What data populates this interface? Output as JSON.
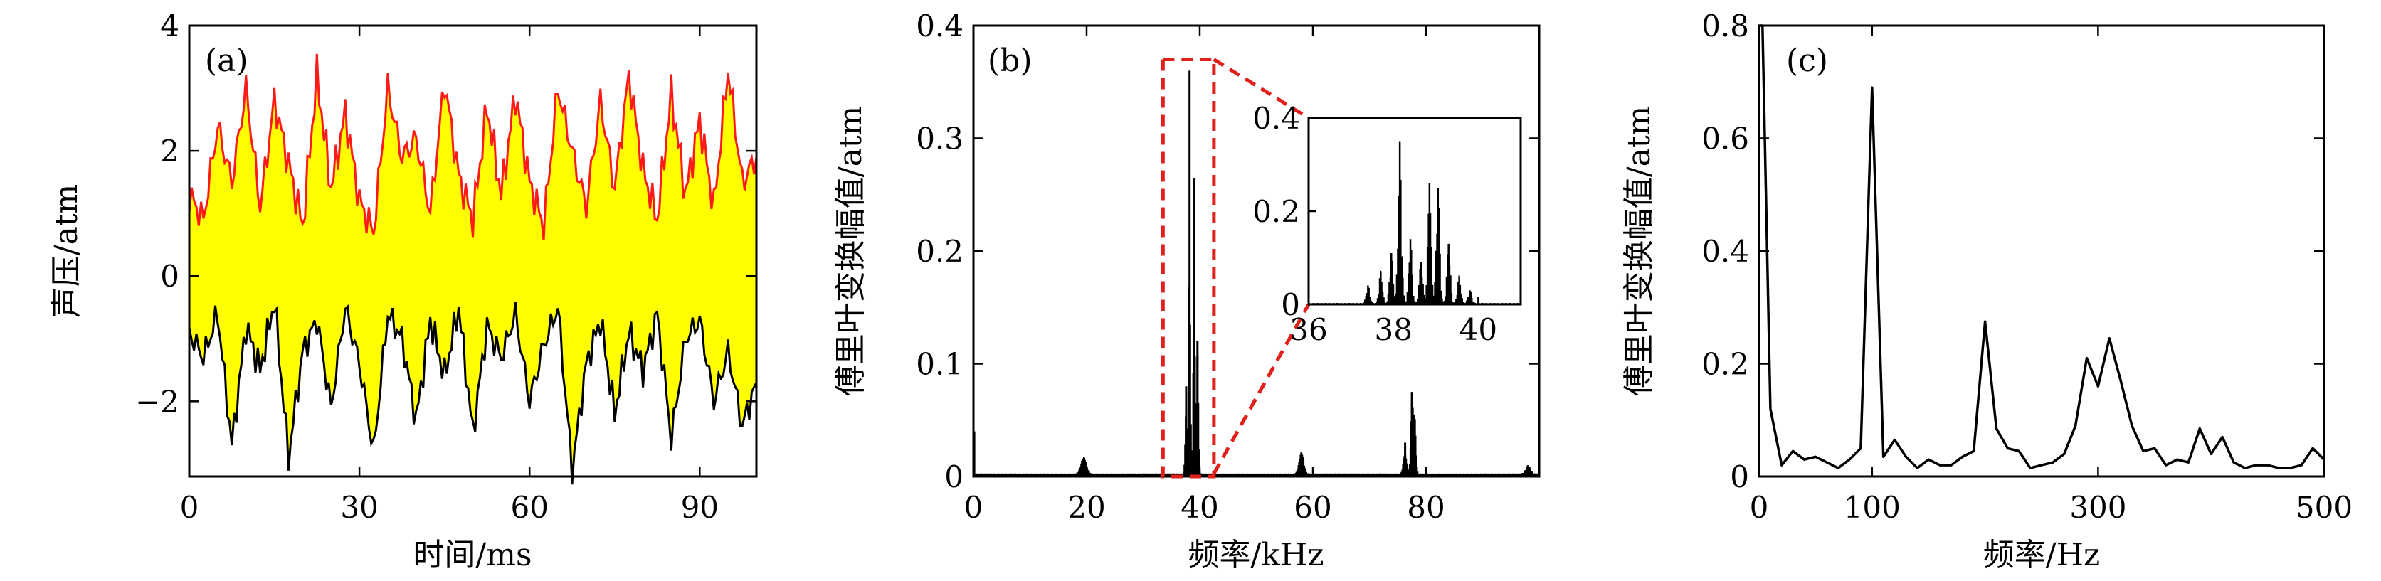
{
  "chart_data": [
    {
      "id": "a",
      "type": "area",
      "panel_label": "(a)",
      "xlabel": "时间/ms",
      "ylabel": "声压/atm",
      "xlim": [
        0,
        100
      ],
      "ylim": [
        -3.2,
        4
      ],
      "xticks": [
        0,
        30,
        60,
        90
      ],
      "yticks": [
        -2,
        0,
        2,
        4
      ],
      "ytick_labels": [
        "−2",
        "0",
        "2",
        "4"
      ],
      "fill_color": "#ffff00",
      "upper_color": "#ff1a1a",
      "lower_color": "#000000",
      "t": [
        0,
        2.5,
        5,
        7.5,
        10,
        12.5,
        15,
        17.5,
        20,
        22.5,
        25,
        27.5,
        30,
        32.5,
        35,
        37.5,
        40,
        42.5,
        45,
        47.5,
        50,
        52.5,
        55,
        57.5,
        60,
        62.5,
        65,
        67.5,
        70,
        72.5,
        75,
        77.5,
        80,
        82.5,
        85,
        87.5,
        90,
        92.5,
        95,
        97.5,
        100
      ],
      "upper_envelope": [
        1.3,
        0.9,
        2.4,
        1.5,
        3.0,
        1.1,
        2.8,
        1.8,
        0.8,
        3.2,
        1.4,
        2.6,
        1.2,
        0.7,
        3.0,
        1.9,
        2.2,
        1.0,
        3.1,
        1.6,
        0.9,
        2.7,
        1.3,
        2.9,
        1.5,
        0.8,
        3.0,
        2.0,
        1.1,
        2.8,
        1.4,
        3.2,
        1.7,
        0.9,
        2.9,
        1.3,
        2.5,
        1.1,
        3.3,
        1.5,
        1.9
      ],
      "lower_envelope": [
        -0.9,
        -1.3,
        -0.6,
        -2.7,
        -0.8,
        -1.5,
        -0.4,
        -2.9,
        -1.2,
        -0.7,
        -2.1,
        -0.5,
        -1.4,
        -2.8,
        -0.6,
        -1.0,
        -2.3,
        -0.7,
        -1.6,
        -0.5,
        -2.5,
        -0.8,
        -1.3,
        -0.6,
        -2.0,
        -1.1,
        -0.5,
        -3.1,
        -1.4,
        -0.7,
        -2.2,
        -0.9,
        -1.5,
        -0.6,
        -2.6,
        -1.0,
        -0.7,
        -2.0,
        -1.2,
        -2.4,
        -1.7
      ]
    },
    {
      "id": "b",
      "type": "line",
      "panel_label": "(b)",
      "xlabel": "频率/kHz",
      "ylabel": "傅里叶变换幅值/atm",
      "xlim": [
        0,
        100
      ],
      "ylim": [
        0,
        0.4
      ],
      "xticks": [
        0,
        20,
        40,
        60,
        80
      ],
      "yticks": [
        0,
        0.1,
        0.2,
        0.3,
        0.4
      ],
      "ytick_labels": [
        "0",
        "0.1",
        "0.2",
        "0.3",
        "0.4"
      ],
      "peaks": [
        {
          "x": 19.5,
          "y": 0.015,
          "width": 1.2
        },
        {
          "x": 38.2,
          "y": 0.36,
          "width": 0.35
        },
        {
          "x": 39.0,
          "y": 0.265,
          "width": 0.35
        },
        {
          "x": 37.6,
          "y": 0.08,
          "width": 0.4
        },
        {
          "x": 39.6,
          "y": 0.12,
          "width": 0.4
        },
        {
          "x": 58.0,
          "y": 0.02,
          "width": 1.0
        },
        {
          "x": 76.3,
          "y": 0.03,
          "width": 0.7
        },
        {
          "x": 77.5,
          "y": 0.075,
          "width": 0.5
        },
        {
          "x": 78.0,
          "y": 0.05,
          "width": 0.5
        },
        {
          "x": 98.0,
          "y": 0.01,
          "width": 1.0
        }
      ],
      "zoom_box": {
        "x_range": [
          33.5,
          42.5
        ],
        "y_top": 0.37,
        "color": "#e0201a"
      },
      "inset": {
        "xlim": [
          36,
          41
        ],
        "ylim": [
          0,
          0.4
        ],
        "xticks": [
          36,
          38,
          40
        ],
        "yticks": [
          0,
          0.2,
          0.4
        ],
        "ytick_labels": [
          "0",
          "0.2",
          "0.4"
        ],
        "peaks": [
          {
            "x": 37.4,
            "y": 0.04
          },
          {
            "x": 37.7,
            "y": 0.07
          },
          {
            "x": 37.95,
            "y": 0.11
          },
          {
            "x": 38.15,
            "y": 0.35
          },
          {
            "x": 38.4,
            "y": 0.14
          },
          {
            "x": 38.65,
            "y": 0.09
          },
          {
            "x": 38.85,
            "y": 0.26
          },
          {
            "x": 39.05,
            "y": 0.25
          },
          {
            "x": 39.3,
            "y": 0.13
          },
          {
            "x": 39.55,
            "y": 0.06
          },
          {
            "x": 39.8,
            "y": 0.03
          }
        ]
      }
    },
    {
      "id": "c",
      "type": "line",
      "panel_label": "(c)",
      "xlabel": "频率/Hz",
      "ylabel": "傅里叶变换幅值/atm",
      "xlim": [
        0,
        500
      ],
      "ylim": [
        0,
        0.8
      ],
      "xticks": [
        0,
        100,
        300,
        500
      ],
      "yticks": [
        0,
        0.2,
        0.4,
        0.6,
        0.8
      ],
      "ytick_labels": [
        "0",
        "0.2",
        "0.4",
        "0.6",
        "0.8"
      ],
      "x": [
        0,
        3,
        10,
        20,
        30,
        40,
        50,
        60,
        70,
        80,
        90,
        100,
        110,
        120,
        130,
        140,
        150,
        160,
        170,
        180,
        190,
        200,
        210,
        220,
        230,
        240,
        250,
        260,
        270,
        280,
        290,
        300,
        310,
        320,
        330,
        340,
        350,
        360,
        370,
        380,
        390,
        400,
        410,
        420,
        430,
        440,
        450,
        460,
        470,
        480,
        490,
        500
      ],
      "y": [
        0.8,
        0.8,
        0.12,
        0.02,
        0.045,
        0.03,
        0.035,
        0.025,
        0.015,
        0.03,
        0.05,
        0.69,
        0.035,
        0.065,
        0.035,
        0.015,
        0.03,
        0.02,
        0.02,
        0.035,
        0.045,
        0.275,
        0.085,
        0.05,
        0.045,
        0.015,
        0.02,
        0.025,
        0.04,
        0.09,
        0.21,
        0.16,
        0.245,
        0.17,
        0.09,
        0.045,
        0.05,
        0.02,
        0.03,
        0.025,
        0.085,
        0.04,
        0.07,
        0.025,
        0.015,
        0.02,
        0.02,
        0.015,
        0.015,
        0.02,
        0.05,
        0.03
      ]
    }
  ]
}
